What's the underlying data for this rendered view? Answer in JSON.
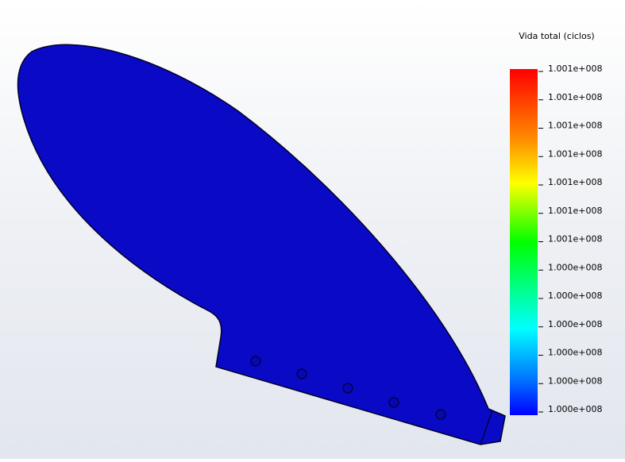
{
  "legend": {
    "title": "Vida total (ciclos)",
    "labels": [
      "1.001e+008",
      "1.001e+008",
      "1.001e+008",
      "1.001e+008",
      "1.001e+008",
      "1.001e+008",
      "1.001e+008",
      "1.000e+008",
      "1.000e+008",
      "1.000e+008",
      "1.000e+008",
      "1.000e+008",
      "1.000e+008"
    ]
  }
}
